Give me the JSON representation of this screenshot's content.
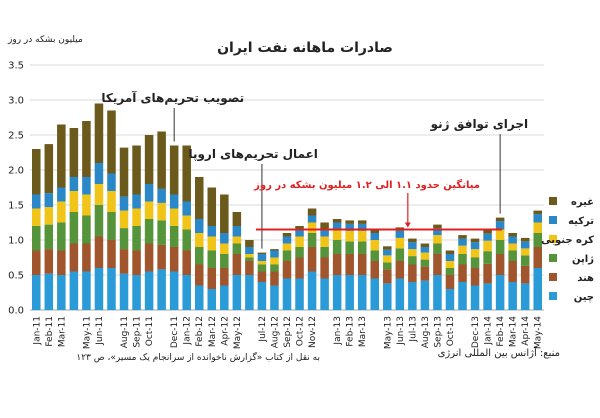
{
  "chart_data": {
    "type": "bar",
    "stacked": true,
    "title": "صادرات ماهانه نفت ایران",
    "ylabel": "میلیون بشکه در روز",
    "ylim": [
      0,
      3.5
    ],
    "yticks": [
      "0.0",
      "0.5",
      "1.0",
      "1.5",
      "2.0",
      "2.5",
      "3.0",
      "3.5"
    ],
    "grid": true,
    "legend_position": "right",
    "categories": [
      "Jan-11",
      "Feb-11",
      "Mar-11",
      "Apr-11",
      "May-11",
      "Jun-11",
      "Jul-11",
      "Aug-11",
      "Sep-11",
      "Oct-11",
      "Nov-11",
      "Dec-11",
      "Jan-12",
      "Feb-12",
      "Mar-12",
      "Apr-12",
      "May-12",
      "Jun-12",
      "Jul-12",
      "Aug-12",
      "Sep-12",
      "Oct-12",
      "Nov-12",
      "Dec-12",
      "Jan-13",
      "Feb-13",
      "Mar-13",
      "Apr-13",
      "May-13",
      "Jun-13",
      "Jul-13",
      "Aug-13",
      "Sep-13",
      "Oct-13",
      "Nov-13",
      "Dec-13",
      "Jan-14",
      "Feb-14",
      "Mar-14",
      "Apr-14",
      "May-14"
    ],
    "xtick_labels": [
      "Jan-11",
      "Feb-11",
      "Mar-11",
      "May-11",
      "Jun-11",
      "Aug-11",
      "Sep-11",
      "Oct-11",
      "Dec-11",
      "Jan-12",
      "Feb-12",
      "Mar-12",
      "Apr-12",
      "May-12",
      "Jul-12",
      "Aug-12",
      "Sep-12",
      "Oct-12",
      "Nov-12",
      "Jan-13",
      "Feb-13",
      "Mar-13",
      "May-13",
      "Jun-13",
      "Jul-13",
      "Aug-13",
      "Sep-13",
      "Oct-13",
      "Dec-13",
      "Jan-14",
      "Feb-14",
      "Mar-14",
      "Apr-14",
      "May-14"
    ],
    "series": [
      {
        "name": "چین",
        "color": "#2a9bd6",
        "values": [
          0.5,
          0.52,
          0.5,
          0.55,
          0.55,
          0.6,
          0.6,
          0.52,
          0.5,
          0.55,
          0.58,
          0.55,
          0.5,
          0.35,
          0.3,
          0.35,
          0.5,
          0.5,
          0.4,
          0.35,
          0.45,
          0.45,
          0.55,
          0.45,
          0.5,
          0.5,
          0.5,
          0.45,
          0.38,
          0.45,
          0.4,
          0.42,
          0.5,
          0.3,
          0.4,
          0.35,
          0.38,
          0.5,
          0.4,
          0.38,
          0.6
        ]
      },
      {
        "name": "هند",
        "color": "#a0552d",
        "values": [
          0.35,
          0.35,
          0.35,
          0.4,
          0.4,
          0.45,
          0.4,
          0.35,
          0.35,
          0.4,
          0.35,
          0.35,
          0.35,
          0.3,
          0.3,
          0.25,
          0.3,
          0.2,
          0.15,
          0.2,
          0.25,
          0.3,
          0.35,
          0.3,
          0.3,
          0.3,
          0.3,
          0.25,
          0.2,
          0.25,
          0.25,
          0.2,
          0.3,
          0.2,
          0.25,
          0.25,
          0.28,
          0.3,
          0.3,
          0.25,
          0.3
        ]
      },
      {
        "name": "ژاپن",
        "color": "#55943a",
        "values": [
          0.35,
          0.35,
          0.4,
          0.45,
          0.4,
          0.45,
          0.4,
          0.3,
          0.35,
          0.35,
          0.35,
          0.3,
          0.3,
          0.25,
          0.25,
          0.2,
          0.15,
          0.05,
          0.1,
          0.1,
          0.15,
          0.15,
          0.2,
          0.15,
          0.2,
          0.18,
          0.18,
          0.15,
          0.1,
          0.18,
          0.12,
          0.1,
          0.15,
          0.1,
          0.15,
          0.15,
          0.18,
          0.2,
          0.15,
          0.15,
          0.2
        ]
      },
      {
        "name": "کره جنوبی",
        "color": "#f0c419",
        "values": [
          0.25,
          0.25,
          0.3,
          0.3,
          0.3,
          0.3,
          0.3,
          0.25,
          0.25,
          0.25,
          0.25,
          0.25,
          0.2,
          0.2,
          0.2,
          0.15,
          0.1,
          0.05,
          0.05,
          0.1,
          0.1,
          0.15,
          0.15,
          0.15,
          0.15,
          0.15,
          0.15,
          0.15,
          0.1,
          0.15,
          0.1,
          0.1,
          0.12,
          0.1,
          0.12,
          0.12,
          0.15,
          0.15,
          0.1,
          0.1,
          0.15
        ]
      },
      {
        "name": "ترکیه",
        "color": "#2b88c8",
        "values": [
          0.2,
          0.2,
          0.2,
          0.2,
          0.25,
          0.3,
          0.25,
          0.2,
          0.2,
          0.25,
          0.2,
          0.2,
          0.2,
          0.2,
          0.15,
          0.15,
          0.15,
          0.1,
          0.1,
          0.1,
          0.1,
          0.1,
          0.1,
          0.1,
          0.1,
          0.1,
          0.1,
          0.1,
          0.08,
          0.1,
          0.1,
          0.08,
          0.1,
          0.1,
          0.1,
          0.1,
          0.1,
          0.12,
          0.1,
          0.1,
          0.12
        ]
      },
      {
        "name": "غیره",
        "color": "#6b5a1c",
        "values": [
          0.65,
          0.7,
          0.9,
          0.7,
          0.8,
          0.85,
          0.9,
          0.7,
          0.7,
          0.7,
          0.82,
          0.7,
          0.8,
          0.6,
          0.55,
          0.55,
          0.2,
          0.1,
          0.02,
          0.02,
          0.05,
          0.05,
          0.1,
          0.1,
          0.05,
          0.05,
          0.05,
          0.05,
          0.05,
          0.05,
          0.05,
          0.05,
          0.05,
          0.05,
          0.05,
          0.05,
          0.05,
          0.05,
          0.05,
          0.05,
          0.05
        ]
      }
    ],
    "annotations": [
      {
        "id": "us",
        "text": "تصویب تحریم‌های آمریکا",
        "category": "Dec-11"
      },
      {
        "id": "eu",
        "text": "اعمال تحریم‌های اروپا",
        "category": "Jul-12"
      },
      {
        "id": "geneva",
        "text": "اجرای توافق ژنو",
        "category": "Feb-14"
      },
      {
        "id": "avg",
        "text": "میانگین حدود ۱.۱ الی ۱.۲ میلیون بشکه در روز",
        "color": "#e02020",
        "y": 1.15
      }
    ],
    "source": "منبع: آژانس بین المللی انرژی",
    "note": "به نقل از کتاب «گزارش ناخوانده از سرانجام یک مسیر»، ص ۱۲۳"
  }
}
